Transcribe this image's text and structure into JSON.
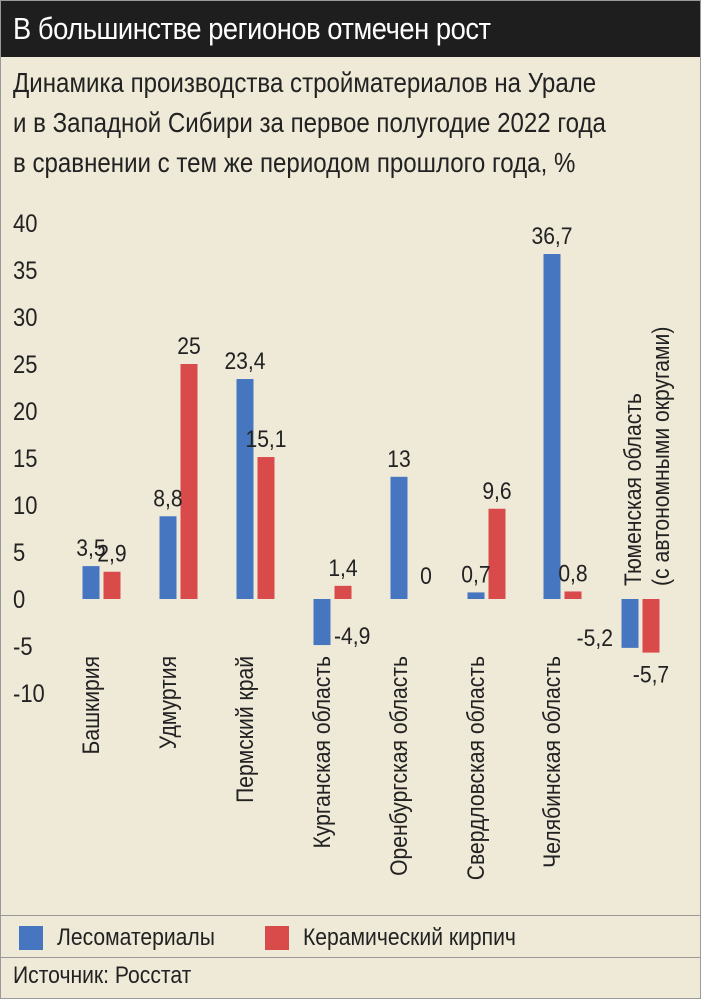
{
  "header": {
    "title": "В большинстве регионов отмечен рост"
  },
  "subtitle_lines": [
    "Динамика производства стройматериалов на Урале",
    "и в Западной Сибири за первое полугодие 2022 года",
    "в сравнении с тем же периодом прошлого года, %"
  ],
  "chart_data": {
    "type": "bar",
    "title": "Динамика производства стройматериалов на Урале и в Западной Сибири за первое полугодие 2022 года в сравнении с тем же периодом прошлого года, %",
    "categories": [
      "Башкирия",
      "Удмуртия",
      "Пермский край",
      "Курганская область",
      "Оренбургская область",
      "Свердловская область",
      "Челябинская область",
      "Тюменская область (с автономными округами)"
    ],
    "category_lines": [
      [
        "Башкирия"
      ],
      [
        "Удмуртия"
      ],
      [
        "Пермский край"
      ],
      [
        "Курганская область"
      ],
      [
        "Оренбургская область"
      ],
      [
        "Свердловская область"
      ],
      [
        "Челябинская область"
      ],
      [
        "Тюменская область",
        "(с автономными округами)"
      ]
    ],
    "series": [
      {
        "name": "Лесоматериалы",
        "color": "#4676c0",
        "values": [
          3.5,
          8.8,
          23.4,
          -4.9,
          13,
          0.7,
          36.7,
          -5.2
        ],
        "labels": [
          "3,5",
          "8,8",
          "23,4",
          "-4,9",
          "13",
          "0,7",
          "36,7",
          "-5,2"
        ]
      },
      {
        "name": "Керамический кирпич",
        "color": "#d94a4a",
        "values": [
          2.9,
          25,
          15.1,
          1.4,
          0,
          9.6,
          0.8,
          -5.7
        ],
        "labels": [
          "2,9",
          "25",
          "15,1",
          "1,4",
          "0",
          "9,6",
          "0,8",
          "-5,7"
        ]
      }
    ],
    "ylim": [
      -10,
      40
    ],
    "yticks": [
      40,
      35,
      30,
      25,
      20,
      15,
      10,
      5,
      0,
      -5,
      -10
    ],
    "grid": false,
    "legend_position": "bottom"
  },
  "legend": {
    "items": [
      {
        "label": "Лесоматериалы",
        "color": "#4676c0"
      },
      {
        "label": "Керамический кирпич",
        "color": "#d94a4a"
      }
    ]
  },
  "source": {
    "text": "Источник: Росстат"
  }
}
